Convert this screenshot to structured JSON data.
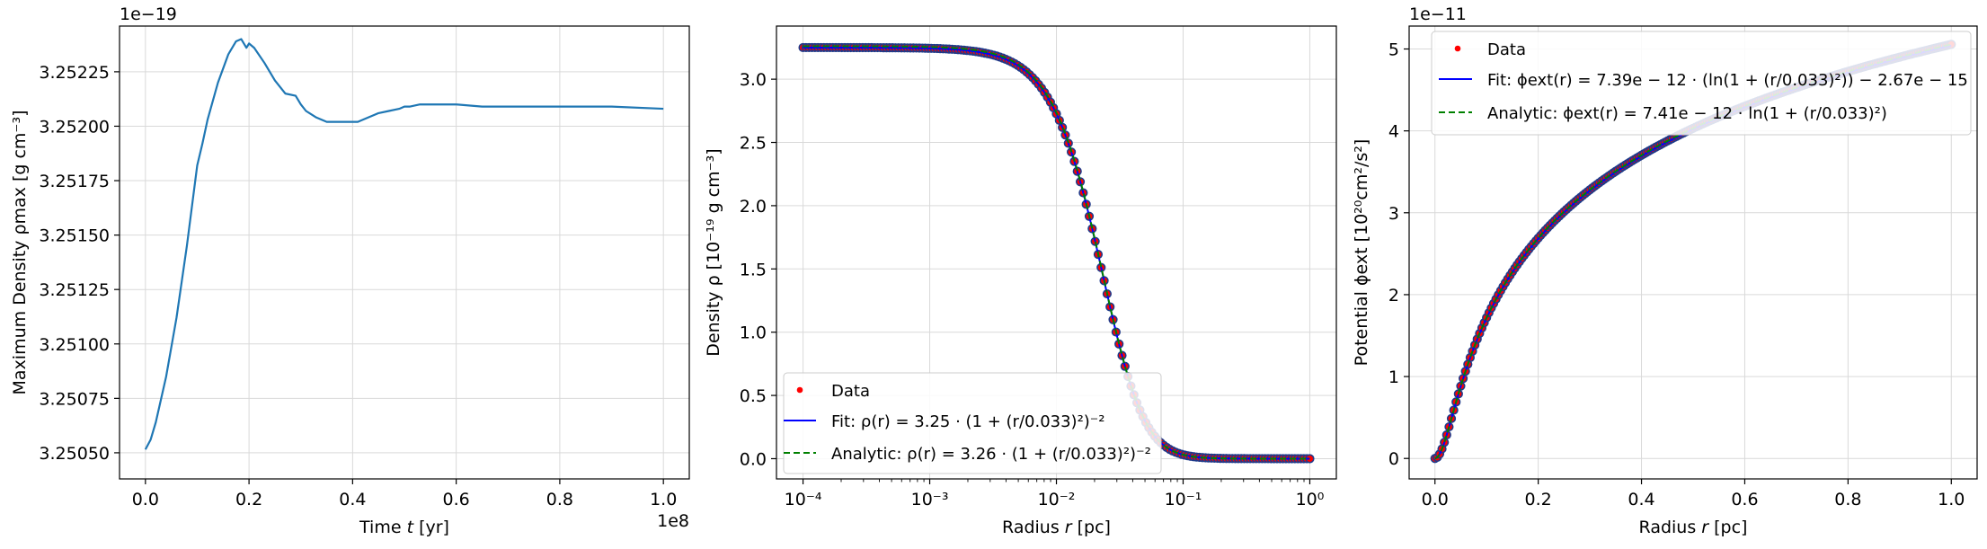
{
  "figure": {
    "background": "#ffffff"
  },
  "chart_data": [
    {
      "type": "line",
      "xlabel_pre": "Time ",
      "xlabel_var": "t",
      "xlabel_post": " [yr]",
      "ylabel": "Maximum Density ρmax [g cm⁻³]",
      "x_offset_text": "1e8",
      "y_offset_text": "1e−19",
      "x_ticks": [
        "0.0",
        "0.2",
        "0.4",
        "0.6",
        "0.8",
        "1.0"
      ],
      "x_tick_values": [
        0.0,
        0.2,
        0.4,
        0.6,
        0.8,
        1.0
      ],
      "y_ticks": [
        "3.25050",
        "3.25075",
        "3.25100",
        "3.25125",
        "3.25150",
        "3.25175",
        "3.25200",
        "3.25225"
      ],
      "y_tick_values": [
        3.2505,
        3.25075,
        3.251,
        3.25125,
        3.2515,
        3.25175,
        3.252,
        3.25225
      ],
      "xlim": [
        -0.05,
        1.05
      ],
      "ylim": [
        3.25038,
        3.25246
      ],
      "grid": true,
      "series": [
        {
          "color": "#1f77b4",
          "x": [
            0.0,
            0.01,
            0.02,
            0.04,
            0.06,
            0.08,
            0.1,
            0.11,
            0.12,
            0.14,
            0.16,
            0.175,
            0.185,
            0.195,
            0.2,
            0.21,
            0.23,
            0.25,
            0.27,
            0.29,
            0.3,
            0.31,
            0.33,
            0.35,
            0.37,
            0.39,
            0.41,
            0.43,
            0.45,
            0.47,
            0.49,
            0.5,
            0.51,
            0.53,
            0.55,
            0.6,
            0.65,
            0.7,
            0.8,
            0.9,
            1.0
          ],
          "y": [
            3.250515,
            3.25056,
            3.25064,
            3.25085,
            3.25112,
            3.25145,
            3.25182,
            3.25192,
            3.25203,
            3.2522,
            3.25233,
            3.25239,
            3.2524,
            3.25236,
            3.25238,
            3.25236,
            3.25229,
            3.25221,
            3.25215,
            3.25214,
            3.2521,
            3.25207,
            3.25204,
            3.25202,
            3.25202,
            3.25202,
            3.25202,
            3.25204,
            3.25206,
            3.25207,
            3.25208,
            3.25209,
            3.25209,
            3.2521,
            3.2521,
            3.2521,
            3.25209,
            3.25209,
            3.25209,
            3.25209,
            3.25208
          ]
        }
      ]
    },
    {
      "type": "scatter",
      "xscale": "log",
      "xlabel_pre": "Radius ",
      "xlabel_var": "r",
      "xlabel_post": " [pc]",
      "ylabel": "Density ρ [10⁻¹⁹ g cm⁻³]",
      "x_ticks": [
        "10⁻⁴",
        "10⁻³",
        "10⁻²",
        "10⁻¹",
        "10⁰"
      ],
      "x_tick_values": [
        0.0001,
        0.001,
        0.01,
        0.1,
        1
      ],
      "y_ticks": [
        "0.0",
        "0.5",
        "1.0",
        "1.5",
        "2.0",
        "2.5",
        "3.0"
      ],
      "y_tick_values": [
        0.0,
        0.5,
        1.0,
        1.5,
        2.0,
        2.5,
        3.0
      ],
      "xlim": [
        6.17e-05,
        1.62
      ],
      "ylim": [
        -0.16,
        3.42
      ],
      "grid": true,
      "legend_position": "lower-left",
      "model": {
        "data_amp": 3.25,
        "fit_amp": 3.25,
        "analytic_amp": 3.26,
        "scale": 0.033,
        "exponent": -2,
        "x_min": 0.0001,
        "x_max": 1.0
      },
      "series": [
        {
          "name": "Data",
          "color": "#ff0000",
          "style": "points"
        },
        {
          "name": "Fit: ρ(r) = 3.25 · (1 + (r/0.033)²)⁻²",
          "color": "#0000ff",
          "style": "solid"
        },
        {
          "name": "Analytic: ρ(r) = 3.26 · (1 + (r/0.033)²)⁻²",
          "color": "#008000",
          "style": "dashed"
        }
      ],
      "point_edge_color": "#1f3a8a"
    },
    {
      "type": "scatter",
      "xlabel_pre": "Radius ",
      "xlabel_var": "r",
      "xlabel_post": " [pc]",
      "ylabel": "Potential ϕext [10²⁰cm²/s²]",
      "y_offset_text": "1e−11",
      "x_ticks": [
        "0.0",
        "0.2",
        "0.4",
        "0.6",
        "0.8",
        "1.0"
      ],
      "x_tick_values": [
        0.0,
        0.2,
        0.4,
        0.6,
        0.8,
        1.0
      ],
      "y_ticks": [
        "0",
        "1",
        "2",
        "3",
        "4",
        "5"
      ],
      "y_tick_values": [
        0,
        1,
        2,
        3,
        4,
        5
      ],
      "xlim": [
        -0.05,
        1.05
      ],
      "ylim": [
        -0.25,
        5.28
      ],
      "grid": true,
      "legend_position": "upper-left",
      "model": {
        "fit_amp": 0.739,
        "fit_offset": -0.000267,
        "analytic_amp": 0.741,
        "scale": 0.033,
        "x_min": 0.0,
        "x_max": 1.0
      },
      "series": [
        {
          "name": "Data",
          "color": "#ff0000",
          "style": "points"
        },
        {
          "name": "Fit: ϕext(r) = 7.39e − 12 · (ln(1 + (r/0.033)²)) − 2.67e − 15",
          "color": "#0000ff",
          "style": "solid"
        },
        {
          "name": "Analytic: ϕext(r) = 7.41e − 12 · ln(1 + (r/0.033)²)",
          "color": "#008000",
          "style": "dashed"
        }
      ],
      "point_edge_color": "#1f3a8a"
    }
  ]
}
